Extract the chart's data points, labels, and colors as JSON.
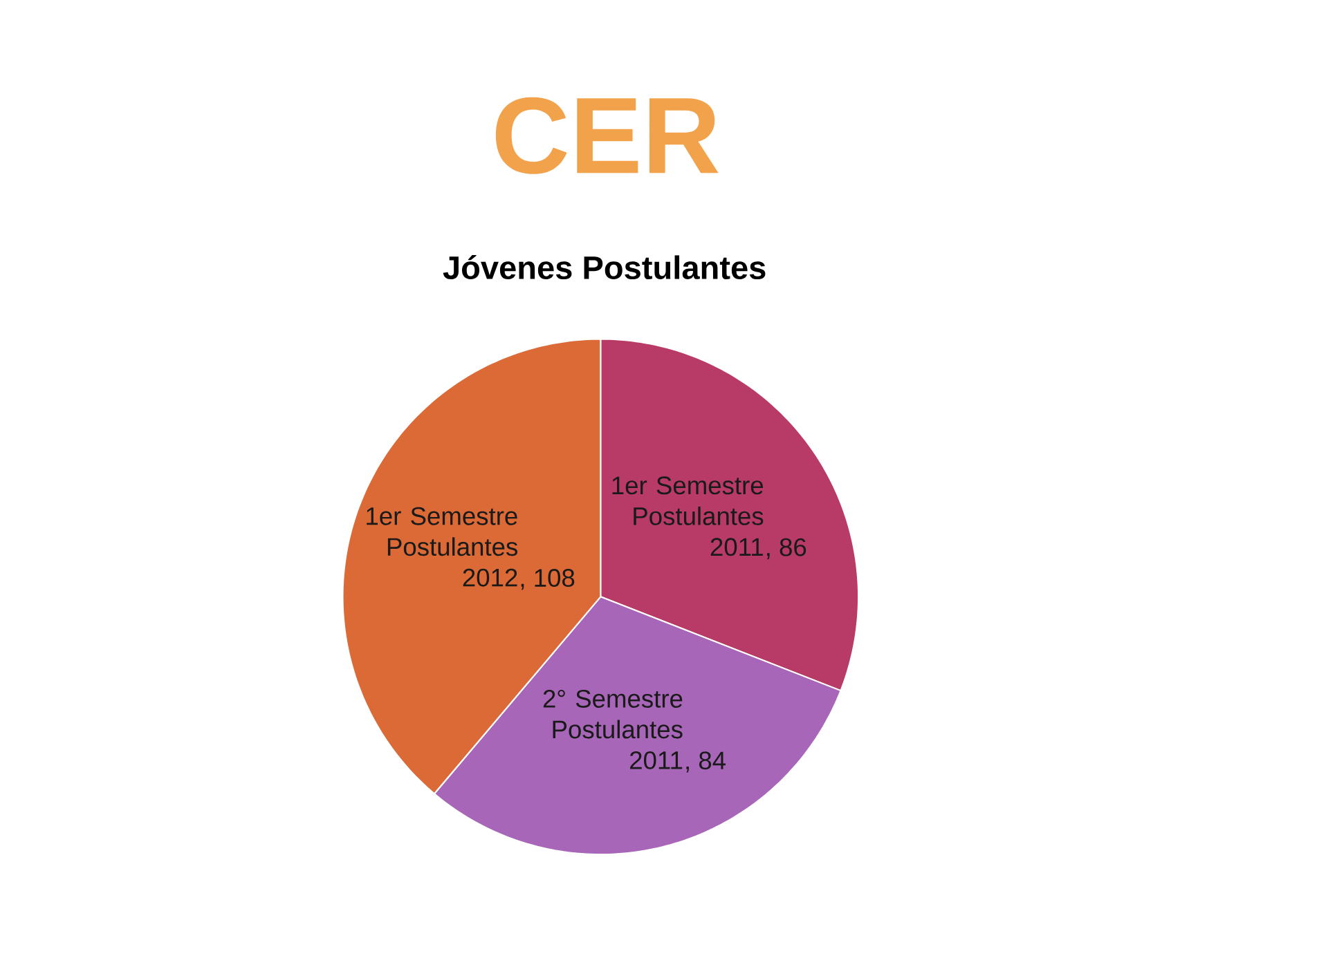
{
  "chart_data": {
    "type": "pie",
    "title": "CER",
    "subtitle": "Jóvenes Postulantes",
    "categories": [
      "1er Semestre Postulantes 2011",
      "2° Semestre Postulantes 2011",
      "1er Semestre Postulantes 2012"
    ],
    "values": [
      86,
      84,
      108
    ],
    "value_labels": [
      ", 86",
      ", 84",
      ", 108"
    ],
    "colors": [
      "#b83a66",
      "#a866b8",
      "#dc6a36"
    ]
  }
}
